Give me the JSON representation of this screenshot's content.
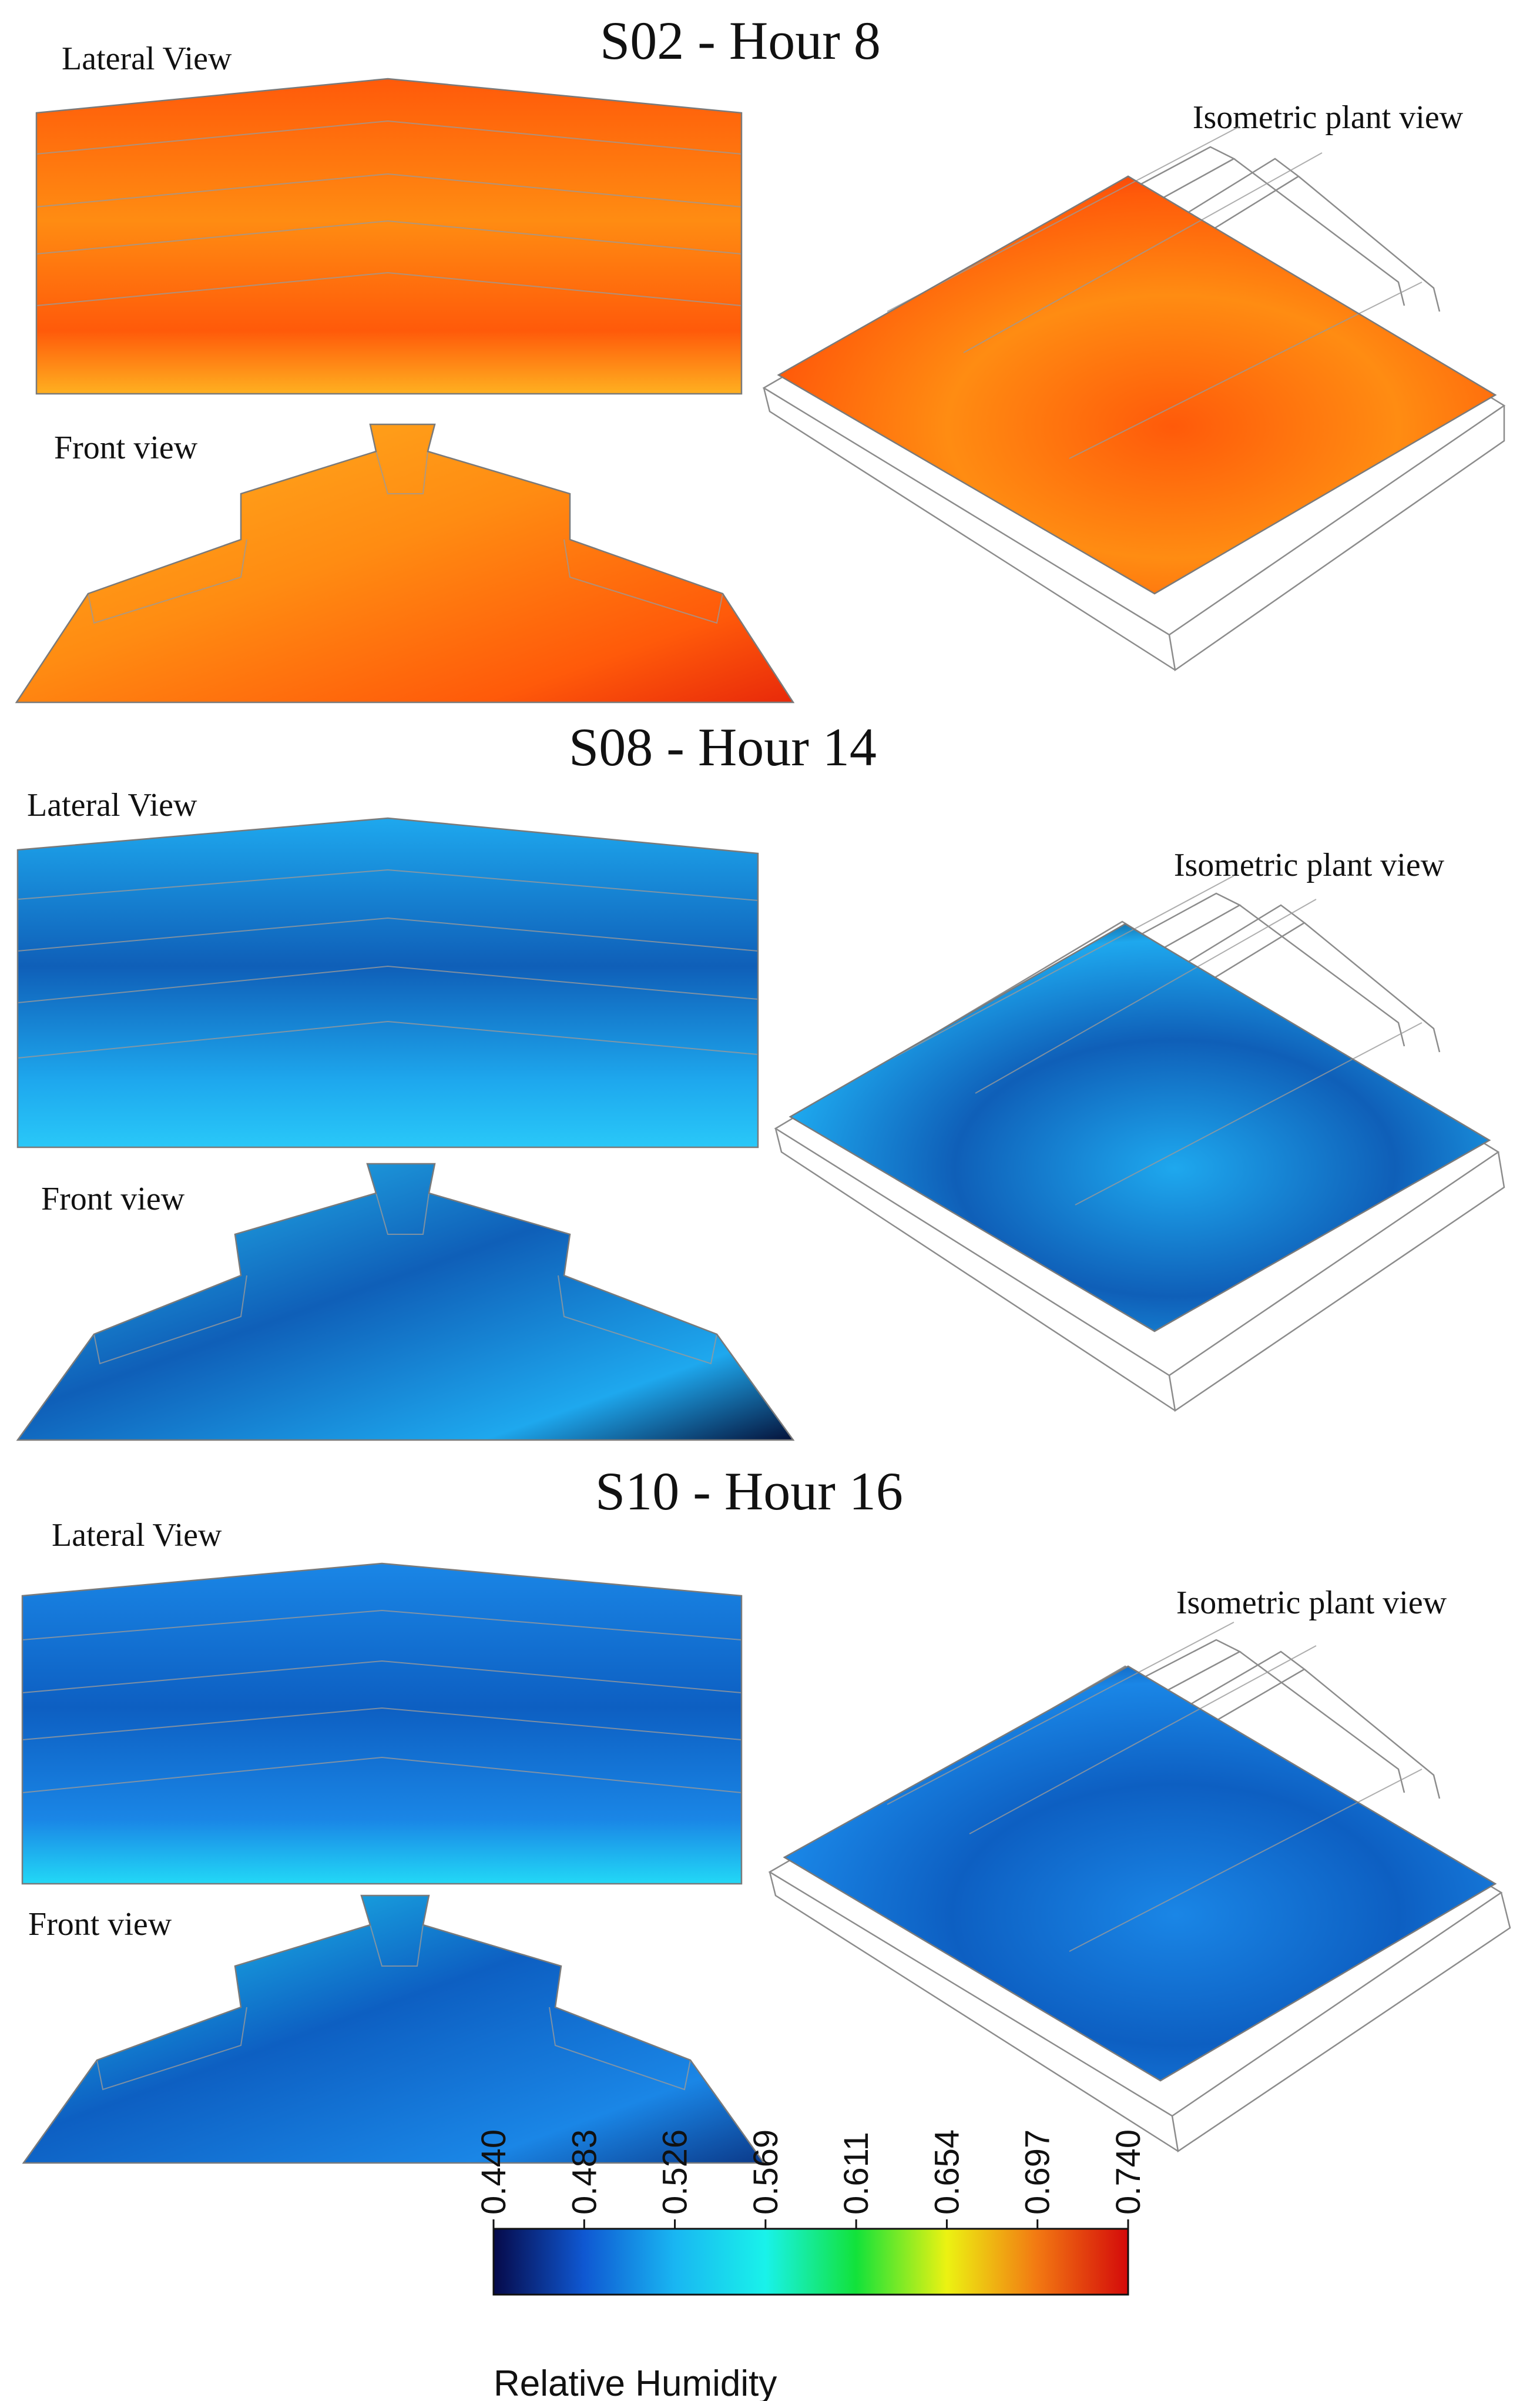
{
  "scenarios": [
    {
      "title": "S02 - Hour 8",
      "lateral_label": "Lateral View",
      "front_label": "Front view",
      "iso_label": "Isometric plant view",
      "palette": {
        "base": "#ff5a0a",
        "low": "#e8290a",
        "high": "#ffb020",
        "accent": "#ff8c12"
      }
    },
    {
      "title": "S08 - Hour 14",
      "lateral_label": "Lateral View",
      "front_label": "Front view",
      "iso_label": "Isometric plant view",
      "palette": {
        "base": "#1ea8ee",
        "low": "#05123a",
        "high": "#29c8f8",
        "accent": "#0f5fb8"
      }
    },
    {
      "title": "S10 - Hour 16",
      "lateral_label": "Lateral View",
      "front_label": "Front view",
      "iso_label": "Isometric plant view",
      "palette": {
        "base": "#1a86e6",
        "low": "#0b3a8a",
        "high": "#22d8f6",
        "accent": "#0d5fc2"
      }
    }
  ],
  "colorbar": {
    "title": "Relative Humidity",
    "ticks": [
      "0.440",
      "0.483",
      "0.526",
      "0.569",
      "0.611",
      "0.654",
      "0.697",
      "0.740"
    ],
    "colors": [
      "#060a4a",
      "#0f58d2",
      "#19b6f2",
      "#19f2ea",
      "#12e23a",
      "#ecf212",
      "#f27812",
      "#d40a0a"
    ]
  }
}
